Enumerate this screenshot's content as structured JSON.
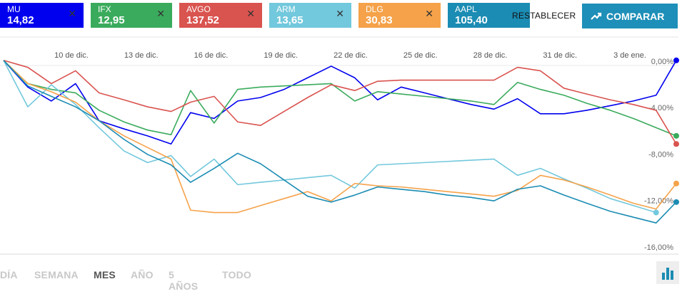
{
  "chips": [
    {
      "symbol": "MU",
      "value": "14,82",
      "color": "#0000ee"
    },
    {
      "symbol": "IFX",
      "value": "12,95",
      "color": "#3aab5c"
    },
    {
      "symbol": "AVGO",
      "value": "137,52",
      "color": "#d9534f"
    },
    {
      "symbol": "ARM",
      "value": "13,65",
      "color": "#72c8dc"
    },
    {
      "symbol": "DLG",
      "value": "30,83",
      "color": "#f5a24a"
    },
    {
      "symbol": "AAPL",
      "value": "105,40",
      "color": "#1b8cb3"
    }
  ],
  "close_glyph": "✕",
  "reset_label": "RESTABLECER",
  "compare_label": "COMPARAR",
  "ranges": [
    "DÍA",
    "SEMANA",
    "MES",
    "AÑO",
    "5 AÑOS",
    "TODO"
  ],
  "active_range": "MES",
  "icons": {
    "compare": "trend-up-icon",
    "chart_type": "bar-chart-icon"
  },
  "chart_data": {
    "type": "line",
    "x_ticks": [
      "10 de dic.",
      "13 de dic.",
      "16 de dic.",
      "19 de dic.",
      "22 de dic.",
      "25 de dic.",
      "28 de dic.",
      "31 de dic.",
      "3 de ene."
    ],
    "y_ticks": [
      "0,00%",
      "-4,00%",
      "-8,00%",
      "-12,00%",
      "-16,00%"
    ],
    "ylim": [
      -16.5,
      2.5
    ],
    "xlim": [
      0,
      100
    ],
    "series": [
      {
        "name": "MU",
        "color": "#0000ee",
        "x": [
          0,
          3.6,
          7.1,
          10.7,
          14.2,
          17.9,
          21.4,
          24.9,
          27.8,
          31.3,
          34.8,
          38.2,
          41.7,
          45.2,
          48.7,
          52.2,
          55.6,
          59.1,
          62.6,
          66.0,
          69.5,
          72.9,
          76.4,
          79.8,
          83.3,
          86.7,
          90.2,
          93.6,
          97.0,
          100
        ],
        "y": [
          0,
          -2.3,
          -3.5,
          -2.0,
          -5.2,
          -5.9,
          -6.5,
          -7.2,
          -4.5,
          -5.0,
          -3.5,
          -3.2,
          -2.5,
          -1.5,
          -0.5,
          -1.5,
          -3.4,
          -2.3,
          -2.8,
          -3.3,
          -3.8,
          -4.2,
          -3.3,
          -4.6,
          -4.6,
          -4.3,
          -3.9,
          -3.5,
          -3.0,
          0
        ]
      },
      {
        "name": "IFX",
        "color": "#3aab5c",
        "x": [
          0,
          3.6,
          7.1,
          10.7,
          14.2,
          17.9,
          21.4,
          24.9,
          27.8,
          31.3,
          34.8,
          38.2,
          41.7,
          45.2,
          48.7,
          52.2,
          55.6,
          59.1,
          62.6,
          66.0,
          69.5,
          72.9,
          76.4,
          79.8,
          83.3,
          86.7,
          90.2,
          93.6,
          97.0,
          100
        ],
        "y": [
          0,
          -2.0,
          -2.5,
          -2.8,
          -4.3,
          -5.3,
          -6.0,
          -6.4,
          -2.6,
          -5.4,
          -2.5,
          -2.3,
          -2.2,
          -2.1,
          -2.0,
          -3.5,
          -2.7,
          -2.9,
          -3.1,
          -3.3,
          -3.5,
          -3.8,
          -1.9,
          -2.5,
          -3.0,
          -3.7,
          -4.3,
          -5.0,
          -5.8,
          -6.5
        ]
      },
      {
        "name": "AVGO",
        "color": "#d9534f",
        "x": [
          0,
          3.6,
          7.1,
          10.7,
          14.2,
          17.9,
          21.4,
          24.9,
          27.8,
          31.3,
          34.8,
          38.2,
          41.7,
          45.2,
          48.7,
          52.2,
          55.6,
          59.1,
          62.6,
          66.0,
          69.5,
          72.9,
          76.4,
          79.8,
          83.3,
          86.7,
          90.2,
          93.6,
          97.0,
          100
        ],
        "y": [
          0,
          -0.6,
          -2.0,
          -0.9,
          -2.8,
          -3.4,
          -4.0,
          -4.4,
          -3.6,
          -3.1,
          -5.3,
          -5.6,
          -4.4,
          -3.2,
          -2.1,
          -2.6,
          -1.8,
          -1.7,
          -1.7,
          -1.7,
          -1.7,
          -1.7,
          -0.6,
          -0.9,
          -2.4,
          -2.9,
          -3.4,
          -3.8,
          -4.3,
          -7.2
        ]
      },
      {
        "name": "ARM",
        "color": "#72c8dc",
        "x": [
          0,
          3.6,
          7.1,
          10.7,
          14.2,
          17.9,
          21.4,
          24.9,
          27.8,
          31.3,
          34.8,
          38.2,
          41.7,
          45.2,
          48.7,
          52.2,
          55.6,
          59.1,
          62.6,
          66.0,
          69.5,
          72.9,
          76.4,
          79.8,
          83.3,
          86.7,
          90.2,
          93.6,
          97.0
        ],
        "y": [
          0,
          -4.0,
          -2.1,
          -3.8,
          -5.8,
          -7.8,
          -8.8,
          -8.2,
          -10.0,
          -8.5,
          -10.7,
          -10.5,
          -10.3,
          -10.1,
          -9.9,
          -11.0,
          -9.0,
          -8.9,
          -8.8,
          -8.7,
          -8.6,
          -8.5,
          -9.9,
          -9.3,
          -10.2,
          -11.0,
          -11.9,
          -12.5,
          -13.1
        ]
      },
      {
        "name": "DLG",
        "color": "#f5a24a",
        "x": [
          0,
          3.6,
          7.1,
          10.7,
          14.2,
          17.9,
          21.4,
          24.9,
          27.8,
          31.3,
          34.8,
          38.2,
          41.7,
          45.2,
          48.7,
          52.2,
          55.6,
          59.1,
          62.6,
          66.0,
          69.5,
          72.9,
          76.4,
          79.8,
          83.3,
          86.7,
          90.2,
          93.6,
          97.0,
          100
        ],
        "y": [
          0,
          -2.0,
          -2.7,
          -3.6,
          -5.2,
          -6.5,
          -7.5,
          -8.5,
          -12.9,
          -13.1,
          -13.1,
          -12.5,
          -11.9,
          -11.3,
          -12.1,
          -10.6,
          -10.8,
          -10.9,
          -11.1,
          -11.3,
          -11.5,
          -11.7,
          -11.2,
          -9.9,
          -10.3,
          -10.9,
          -11.6,
          -12.3,
          -12.8,
          -10.6
        ]
      },
      {
        "name": "AAPL",
        "color": "#1b8cb3",
        "x": [
          0,
          3.6,
          7.1,
          10.7,
          14.2,
          17.9,
          21.4,
          24.9,
          27.8,
          31.3,
          34.8,
          38.2,
          41.7,
          45.2,
          48.7,
          52.2,
          55.6,
          59.1,
          62.6,
          66.0,
          69.5,
          72.9,
          76.4,
          79.8,
          83.3,
          86.7,
          90.2,
          93.6,
          97.0,
          100
        ],
        "y": [
          0,
          -2.2,
          -3.1,
          -4.0,
          -5.2,
          -6.8,
          -8.1,
          -9.0,
          -10.5,
          -9.3,
          -8.0,
          -8.9,
          -10.3,
          -11.7,
          -12.2,
          -11.6,
          -10.9,
          -11.1,
          -11.3,
          -11.6,
          -11.8,
          -12.1,
          -11.1,
          -10.8,
          -11.6,
          -12.3,
          -13.0,
          -13.5,
          -14.0,
          -12.2
        ]
      }
    ]
  }
}
